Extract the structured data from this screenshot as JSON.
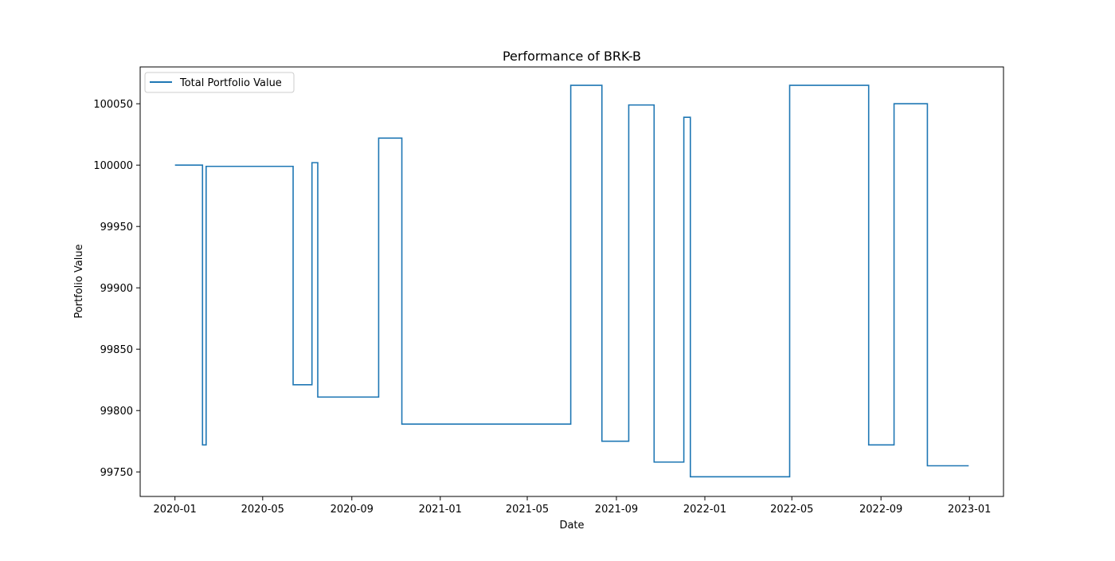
{
  "chart_data": {
    "type": "line",
    "title": "Performance of BRK-B",
    "xlabel": "Date",
    "ylabel": "Portfolio Value",
    "xlim": [
      "2019-11-14",
      "2023-02-17"
    ],
    "ylim": [
      99730,
      100080
    ],
    "grid": false,
    "legend_position": "top-left",
    "x_tick_labels": [
      "2020-01",
      "2020-05",
      "2020-09",
      "2021-01",
      "2021-05",
      "2021-09",
      "2022-01",
      "2022-05",
      "2022-09",
      "2023-01"
    ],
    "y_tick_labels": [
      "99750",
      "99800",
      "99850",
      "99900",
      "99950",
      "100000",
      "100050"
    ],
    "colors": {
      "series": "#1f77b4",
      "axes": "#000000"
    },
    "series": [
      {
        "name": "Total Portfolio Value",
        "step": true,
        "points": [
          {
            "x": "2020-01-01",
            "y": 100000
          },
          {
            "x": "2020-02-08",
            "y": 100000
          },
          {
            "x": "2020-02-08",
            "y": 99772
          },
          {
            "x": "2020-02-13",
            "y": 99772
          },
          {
            "x": "2020-02-13",
            "y": 99999
          },
          {
            "x": "2020-06-12",
            "y": 99999
          },
          {
            "x": "2020-06-12",
            "y": 99821
          },
          {
            "x": "2020-07-08",
            "y": 99821
          },
          {
            "x": "2020-07-08",
            "y": 100002
          },
          {
            "x": "2020-07-16",
            "y": 100002
          },
          {
            "x": "2020-07-16",
            "y": 99811
          },
          {
            "x": "2020-10-08",
            "y": 99811
          },
          {
            "x": "2020-10-08",
            "y": 100022
          },
          {
            "x": "2020-11-09",
            "y": 100022
          },
          {
            "x": "2020-11-09",
            "y": 99789
          },
          {
            "x": "2021-06-30",
            "y": 99789
          },
          {
            "x": "2021-06-30",
            "y": 100065
          },
          {
            "x": "2021-08-12",
            "y": 100065
          },
          {
            "x": "2021-08-12",
            "y": 99775
          },
          {
            "x": "2021-09-18",
            "y": 99775
          },
          {
            "x": "2021-09-18",
            "y": 100049
          },
          {
            "x": "2021-10-23",
            "y": 100049
          },
          {
            "x": "2021-10-23",
            "y": 99758
          },
          {
            "x": "2021-12-03",
            "y": 99758
          },
          {
            "x": "2021-12-03",
            "y": 100039
          },
          {
            "x": "2021-12-12",
            "y": 100039
          },
          {
            "x": "2021-12-12",
            "y": 99746
          },
          {
            "x": "2022-04-28",
            "y": 99746
          },
          {
            "x": "2022-04-28",
            "y": 100065
          },
          {
            "x": "2022-08-15",
            "y": 100065
          },
          {
            "x": "2022-08-15",
            "y": 99772
          },
          {
            "x": "2022-09-19",
            "y": 99772
          },
          {
            "x": "2022-09-19",
            "y": 100050
          },
          {
            "x": "2022-11-04",
            "y": 100050
          },
          {
            "x": "2022-11-04",
            "y": 99755
          },
          {
            "x": "2022-12-31",
            "y": 99755
          }
        ]
      }
    ]
  }
}
